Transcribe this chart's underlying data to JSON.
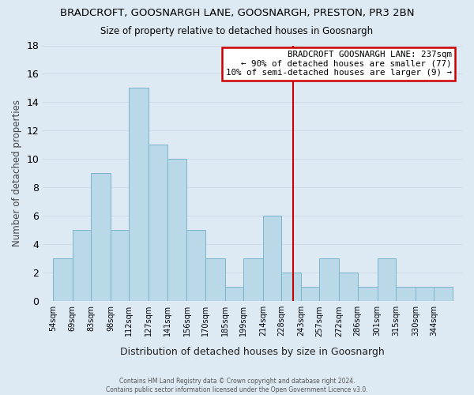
{
  "title": "BRADCROFT, GOOSNARGH LANE, GOOSNARGH, PRESTON, PR3 2BN",
  "subtitle": "Size of property relative to detached houses in Goosnargh",
  "xlabel": "Distribution of detached houses by size in Goosnargh",
  "ylabel": "Number of detached properties",
  "bin_labels": [
    "54sqm",
    "69sqm",
    "83sqm",
    "98sqm",
    "112sqm",
    "127sqm",
    "141sqm",
    "156sqm",
    "170sqm",
    "185sqm",
    "199sqm",
    "214sqm",
    "228sqm",
    "243sqm",
    "257sqm",
    "272sqm",
    "286sqm",
    "301sqm",
    "315sqm",
    "330sqm",
    "344sqm"
  ],
  "bin_edges": [
    54,
    69,
    83,
    98,
    112,
    127,
    141,
    156,
    170,
    185,
    199,
    214,
    228,
    243,
    257,
    272,
    286,
    301,
    315,
    330,
    344,
    358
  ],
  "counts": [
    3,
    5,
    9,
    5,
    15,
    11,
    10,
    5,
    3,
    1,
    3,
    6,
    2,
    1,
    3,
    2,
    1,
    3,
    1,
    1,
    1
  ],
  "bar_color": "#bad9e8",
  "bar_edge_color": "#7ab4cc",
  "vline_x": 237,
  "vline_color": "#cc0000",
  "ylim": [
    0,
    18
  ],
  "yticks": [
    0,
    2,
    4,
    6,
    8,
    10,
    12,
    14,
    16,
    18
  ],
  "grid_color": "#d0dde8",
  "bg_color": "#ddeaf4",
  "annotation_title": "BRADCROFT GOOSNARGH LANE: 237sqm",
  "annotation_line1": "← 90% of detached houses are smaller (77)",
  "annotation_line2": "10% of semi-detached houses are larger (9) →",
  "annotation_box_color": "#ffffff",
  "annotation_border_color": "#cc0000",
  "footer_line1": "Contains HM Land Registry data © Crown copyright and database right 2024.",
  "footer_line2": "Contains public sector information licensed under the Open Government Licence v3.0."
}
